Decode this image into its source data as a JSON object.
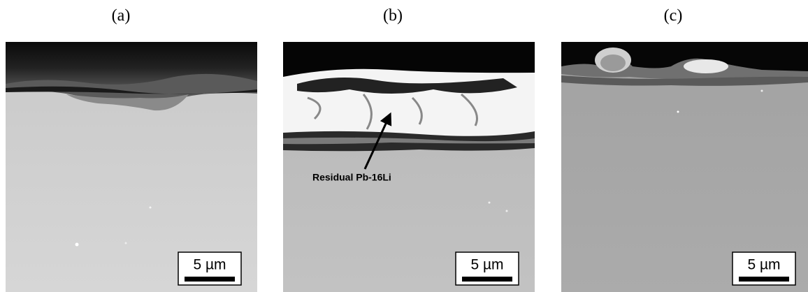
{
  "panels": [
    {
      "label": "(a)",
      "scale_bar": "5 µm"
    },
    {
      "label": "(b)",
      "annotation": "Residual Pb-16Li",
      "scale_bar": "5 µm"
    },
    {
      "label": "(c)",
      "scale_bar": "5 µm"
    }
  ]
}
